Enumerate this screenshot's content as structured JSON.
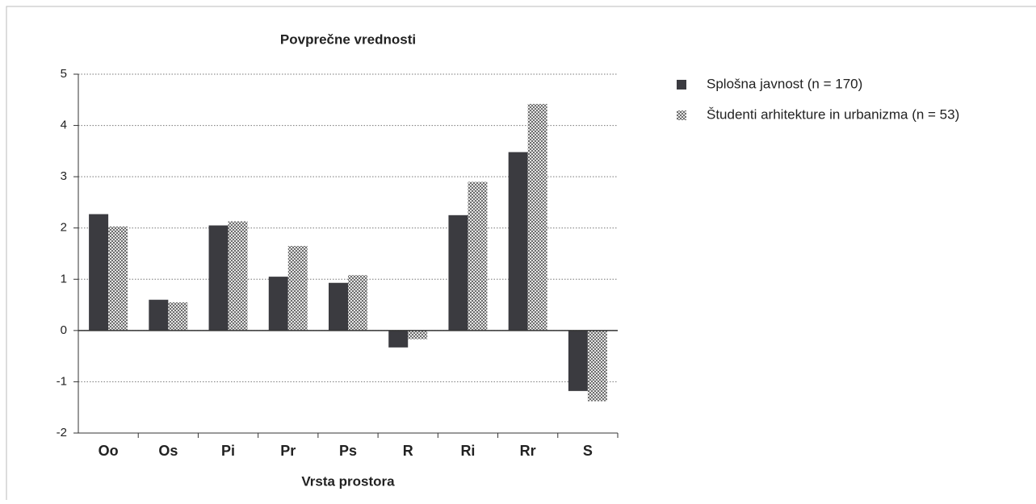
{
  "chart_data": {
    "type": "bar",
    "title": "Povprečne vrednosti",
    "x_label": "Vrsta prostora",
    "categories": [
      "Oo",
      "Os",
      "Pi",
      "Pr",
      "Ps",
      "R",
      "Ri",
      "Rr",
      "S"
    ],
    "series": [
      {
        "name": "Splošna javnost (n = 170)",
        "color": "#3b3b40",
        "hatch": false,
        "values": [
          2.27,
          0.6,
          2.05,
          1.05,
          0.93,
          -0.33,
          2.25,
          3.48,
          -1.18
        ]
      },
      {
        "name": "Študenti arhitekture in urbanizma (n = 53)",
        "color": "#8c8c8c",
        "hatch": true,
        "values": [
          2.03,
          0.55,
          2.13,
          1.65,
          1.08,
          -0.17,
          2.9,
          4.42,
          -1.38
        ]
      }
    ],
    "ylim": [
      -2,
      5
    ],
    "yticks": [
      -2,
      -1,
      0,
      1,
      2,
      3,
      4,
      5
    ],
    "grid": true,
    "legend": "right"
  }
}
